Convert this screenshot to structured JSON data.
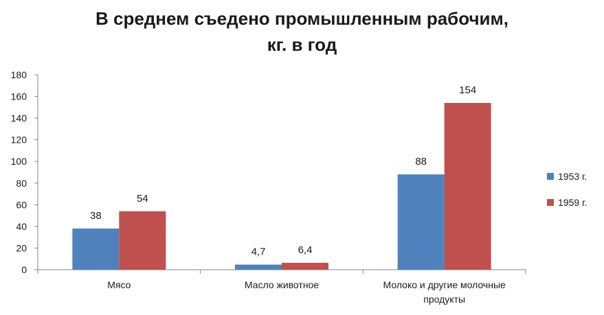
{
  "chart_data": {
    "type": "bar",
    "title_lines": [
      "В среднем съедено промышленным рабочим,",
      "кг. в год"
    ],
    "categories": [
      [
        "Мясо"
      ],
      [
        "Масло животное"
      ],
      [
        "Молоко и другие молочные",
        "продукты"
      ]
    ],
    "series": [
      {
        "name": "1953 г.",
        "color": "#4F81BD",
        "values": [
          38,
          4.7,
          88
        ],
        "labels": [
          "38",
          "4,7",
          "88"
        ]
      },
      {
        "name": "1959 г.",
        "color": "#C0504D",
        "values": [
          54,
          6.4,
          154
        ],
        "labels": [
          "54",
          "6,4",
          "154"
        ]
      }
    ],
    "ylim": [
      0,
      180
    ],
    "yticks": [
      0,
      20,
      40,
      60,
      80,
      100,
      120,
      140,
      160,
      180
    ],
    "grid": false,
    "legend_position": "right"
  }
}
